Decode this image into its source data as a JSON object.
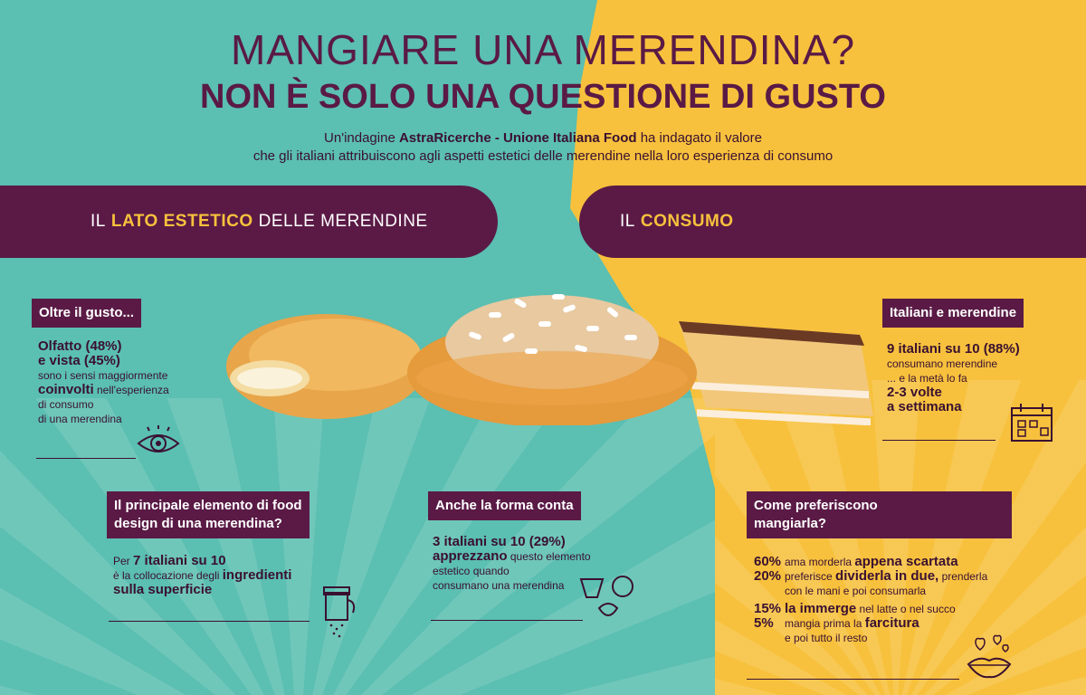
{
  "header": {
    "title_line1": "MANGIARE UNA MERENDINA?",
    "title_line2": "NON È SOLO UNA QUESTIONE DI GUSTO",
    "intro_prefix": "Un'indagine ",
    "intro_brand": "AstraRicerche - Unione Italiana Food",
    "intro_line1_suffix": " ha indagato il valore",
    "intro_line2": "che gli italiani attribuiscono agli aspetti estetici delle merendine nella loro esperienza di consumo"
  },
  "left_banner": {
    "pre": "IL",
    "highlight": "LATO ESTETICO",
    "post": "DELLE MERENDINE"
  },
  "right_banner": {
    "pre": "IL",
    "highlight": "CONSUMO"
  },
  "oltre": {
    "tag": "Oltre il gusto...",
    "l1a": "Olfatto",
    "l1b": " (48%)",
    "l2a": "e vista",
    "l2b": " (45%)",
    "l3": "sono i sensi maggiormente",
    "l4a": "coinvolti",
    "l4b": " nell'esperienza",
    "l5": "di consumo",
    "l6": "di una merendina"
  },
  "italiani": {
    "tag": "Italiani e merendine",
    "l1": "9 italiani su 10 (88%)",
    "l2": "consumano merendine",
    "l3": "... e la metà lo fa",
    "l4": "2-3 volte",
    "l5": "a settimana"
  },
  "design": {
    "tag1": "Il principale elemento di food",
    "tag2": "design di una merendina?",
    "l1a": "Per ",
    "l1b": "7 italiani su 10",
    "l2a": "è la collocazione degli ",
    "l2b": "ingredienti",
    "l3": "sulla superficie"
  },
  "forma": {
    "tag": "Anche la forma conta",
    "l1": "3 italiani su 10 (29%)",
    "l2a": "apprezzano",
    "l2b": " questo elemento",
    "l3": "estetico quando",
    "l4": "consumano una merendina"
  },
  "come": {
    "tag1": "Come preferiscono",
    "tag2": "mangiarla?",
    "rows": [
      {
        "pct": "60%",
        "pre": "ama morderla ",
        "bold": "appena scartata",
        "post": ""
      },
      {
        "pct": "20%",
        "pre": "preferisce ",
        "bold": "dividerla in due,",
        "post": " prenderla"
      },
      {
        "pct": "",
        "pre": "con le mani e poi consumarla",
        "bold": "",
        "post": ""
      },
      {
        "pct": "15%",
        "pre": "",
        "bold": "la immerge",
        "post": " nel latte o nel succo"
      },
      {
        "pct": "5%",
        "pre": "mangia prima la ",
        "bold": "farcitura",
        "post": ""
      },
      {
        "pct": "",
        "pre": "e poi tutto il resto",
        "bold": "",
        "post": ""
      }
    ]
  },
  "icons": {
    "eye": "eye-icon",
    "calendar": "calendar-icon",
    "shaker": "sugar-shaker-icon",
    "shapes": "shapes-icon",
    "lips": "lips-hearts-icon"
  },
  "colors": {
    "teal": "#5bbfb1",
    "yellow": "#f7c13d",
    "purple": "#5a1a45"
  }
}
